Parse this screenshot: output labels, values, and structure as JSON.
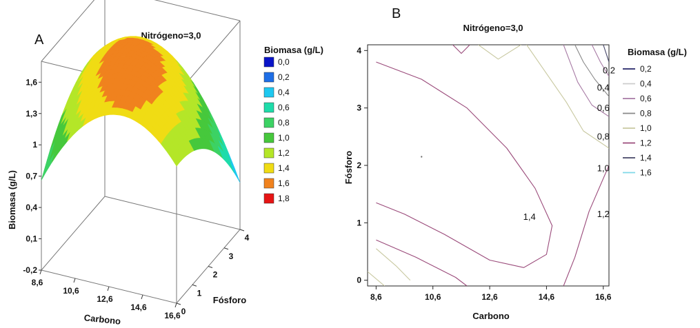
{
  "chart_data": [
    {
      "panel": "A",
      "type": "surface3d",
      "title": "Nitrógeno=3,0",
      "xlabel": "Carbono",
      "ylabel": "Fósforo",
      "zlabel": "Biomasa (g/L)",
      "x_ticks": [
        "8,6",
        "10,6",
        "12,6",
        "14,6",
        "16,6"
      ],
      "y_ticks": [
        "0",
        "1",
        "2",
        "3",
        "4"
      ],
      "z_ticks": [
        "-0,2",
        "0,1",
        "0,4",
        "0,7",
        "1",
        "1,3",
        "1,6"
      ],
      "xlim": [
        8.6,
        16.6
      ],
      "ylim": [
        0,
        4
      ],
      "zlim": [
        -0.2,
        1.8
      ],
      "legend": {
        "title": "Biomasa (g/L)",
        "entries": [
          {
            "label": "0,0",
            "color": "#0a14c8"
          },
          {
            "label": "0,2",
            "color": "#1e6ee6"
          },
          {
            "label": "0,4",
            "color": "#1ec8f0"
          },
          {
            "label": "0,6",
            "color": "#1edcaa"
          },
          {
            "label": "0,8",
            "color": "#3cd264"
          },
          {
            "label": "1,0",
            "color": "#46c83c"
          },
          {
            "label": "1,2",
            "color": "#b4e628"
          },
          {
            "label": "1,4",
            "color": "#f0dc14"
          },
          {
            "label": "1,6",
            "color": "#f0821e"
          },
          {
            "label": "1,8",
            "color": "#e61414"
          }
        ]
      }
    },
    {
      "panel": "B",
      "type": "contour",
      "title": "Nitrógeno=3,0",
      "xlabel": "Carbono",
      "ylabel": "Fósforo",
      "x_ticks": [
        "8,6",
        "10,6",
        "12,6",
        "14,6",
        "16,6"
      ],
      "y_ticks": [
        "0",
        "1",
        "2",
        "3",
        "4"
      ],
      "xlim": [
        8.3,
        16.8
      ],
      "ylim": [
        -0.1,
        4.1
      ],
      "contour_labels": [
        {
          "text": "0,2",
          "x": 16.8,
          "y": 3.6
        },
        {
          "text": "0,4",
          "x": 16.6,
          "y": 3.3
        },
        {
          "text": "0,6",
          "x": 16.6,
          "y": 2.95
        },
        {
          "text": "0,8",
          "x": 16.6,
          "y": 2.45
        },
        {
          "text": "1,0",
          "x": 16.6,
          "y": 1.9
        },
        {
          "text": "1,2",
          "x": 16.6,
          "y": 1.1
        },
        {
          "text": "1,4",
          "x": 14.0,
          "y": 1.05
        }
      ],
      "legend": {
        "title": "Biomasa (g/L)",
        "entries": [
          {
            "label": "0,2",
            "color": "#222266"
          },
          {
            "label": "0,4",
            "color": "#cccccc"
          },
          {
            "label": "0,6",
            "color": "#a77aa4"
          },
          {
            "label": "0,8",
            "color": "#888888"
          },
          {
            "label": "1,0",
            "color": "#c8c8a0"
          },
          {
            "label": "1,2",
            "color": "#9a4a7a"
          },
          {
            "label": "1,4",
            "color": "#444466"
          },
          {
            "label": "1,6",
            "color": "#7fd8e8"
          }
        ]
      }
    }
  ]
}
